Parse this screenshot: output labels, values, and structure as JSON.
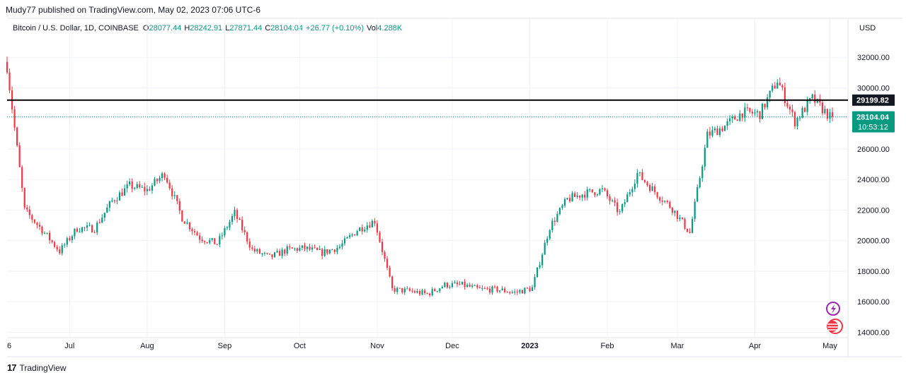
{
  "header": {
    "publisher_line": "Mudy77 published on TradingView.com, May 02, 2023 07:06 UTC-6"
  },
  "legend": {
    "symbol": "Bitcoin / U.S. Dollar, 1D, COINBASE",
    "o_key": "O",
    "o_val": "28077.44",
    "h_key": "H",
    "h_val": "28242.91",
    "l_key": "L",
    "l_val": "27871.44",
    "c_key": "C",
    "c_val": "28104.04",
    "change": "+26.77 (+0.10%)",
    "vol_key": "Vol",
    "vol_val": "4.288K"
  },
  "axis": {
    "currency": "USD"
  },
  "footer": {
    "brand": "TradingView",
    "logo_text": "17"
  },
  "colors": {
    "up": "#089981",
    "down": "#f23645",
    "grid": "#f0f3fa",
    "axis_text": "#131722",
    "level": "#000000"
  },
  "chart_data": {
    "type": "candlestick",
    "x_tick_labels": [
      "6",
      "Jul",
      "Aug",
      "Sep",
      "Oct",
      "Nov",
      "Dec",
      "2023",
      "Feb",
      "Mar",
      "Apr",
      "May"
    ],
    "y_tick_labels": [
      "32000.00",
      "30000.00",
      "28000.00",
      "26000.00",
      "24000.00",
      "22000.00",
      "20000.00",
      "18000.00",
      "16000.00",
      "14000.00"
    ],
    "ylim": [
      13650,
      33350
    ],
    "x_range": [
      "2022-06-06",
      "2023-05-02"
    ],
    "horizontal_level": {
      "value": 29199.82,
      "label": "29199.82"
    },
    "last_price": {
      "value": 28104.04,
      "label": "28104.04",
      "countdown": "10:53:12"
    },
    "weekly_closes": [
      [
        "2022-06-06",
        31400
      ],
      [
        "2022-06-13",
        22000
      ],
      [
        "2022-06-20",
        20700
      ],
      [
        "2022-06-27",
        19300
      ],
      [
        "2022-07-04",
        20800
      ],
      [
        "2022-07-11",
        20800
      ],
      [
        "2022-07-18",
        22600
      ],
      [
        "2022-07-25",
        23600
      ],
      [
        "2022-08-01",
        23300
      ],
      [
        "2022-08-08",
        24400
      ],
      [
        "2022-08-15",
        21500
      ],
      [
        "2022-08-22",
        20200
      ],
      [
        "2022-08-29",
        19800
      ],
      [
        "2022-09-05",
        21800
      ],
      [
        "2022-09-12",
        19400
      ],
      [
        "2022-09-19",
        18900
      ],
      [
        "2022-09-26",
        19400
      ],
      [
        "2022-10-03",
        19500
      ],
      [
        "2022-10-10",
        19200
      ],
      [
        "2022-10-17",
        19600
      ],
      [
        "2022-10-24",
        20700
      ],
      [
        "2022-10-31",
        21300
      ],
      [
        "2022-11-07",
        16800
      ],
      [
        "2022-11-14",
        16700
      ],
      [
        "2022-11-21",
        16500
      ],
      [
        "2022-11-28",
        17100
      ],
      [
        "2022-12-05",
        17100
      ],
      [
        "2022-12-12",
        16800
      ],
      [
        "2022-12-19",
        16800
      ],
      [
        "2022-12-26",
        16600
      ],
      [
        "2023-01-02",
        16900
      ],
      [
        "2023-01-09",
        20900
      ],
      [
        "2023-01-16",
        22700
      ],
      [
        "2023-01-23",
        23100
      ],
      [
        "2023-01-30",
        23300
      ],
      [
        "2023-02-06",
        21800
      ],
      [
        "2023-02-13",
        24400
      ],
      [
        "2023-02-20",
        23200
      ],
      [
        "2023-02-27",
        22100
      ],
      [
        "2023-03-06",
        20500
      ],
      [
        "2023-03-13",
        26900
      ],
      [
        "2023-03-20",
        27500
      ],
      [
        "2023-03-27",
        28400
      ],
      [
        "2023-04-03",
        28300
      ],
      [
        "2023-04-10",
        30500
      ],
      [
        "2023-04-17",
        27800
      ],
      [
        "2023-04-24",
        29300
      ],
      [
        "2023-05-01",
        28104
      ]
    ]
  }
}
